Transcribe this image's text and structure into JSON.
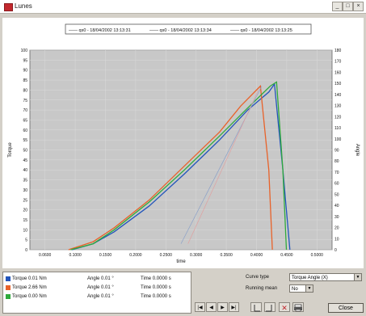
{
  "window": {
    "title": "Lunes"
  },
  "chart_data": {
    "type": "line",
    "title": "",
    "legend": [
      "—— qs0 - 18/04/2002 13:13:31",
      "—— qs0 - 18/04/2002 13:13:34",
      "—— qs0 - 18/04/2002 13:13:25"
    ],
    "legend_placement": "top",
    "xlabel": "time",
    "ylabel": "Torque",
    "y2label": "Angle",
    "xlim": [
      0.03,
      0.46
    ],
    "ylim": [
      0,
      100
    ],
    "y2lim": [
      0,
      180
    ],
    "x_ticks": [
      "0.0600",
      "0.1000",
      "0.1500",
      "0.2000",
      "0.2500",
      "0.3000",
      "0.3500",
      "0.4000",
      "0.4500",
      "0.5000"
    ],
    "y_ticks": [
      0,
      5,
      10,
      15,
      20,
      25,
      30,
      35,
      40,
      45,
      50,
      55,
      60,
      65,
      70,
      75,
      80,
      85,
      90,
      95,
      100
    ],
    "y2_ticks": [
      0,
      10,
      20,
      30,
      40,
      50,
      60,
      70,
      80,
      90,
      100,
      110,
      120,
      130,
      140,
      150,
      160,
      170,
      180
    ],
    "grid": true,
    "background": "#c8c8c8",
    "series": [
      {
        "color": "#2255bb",
        "x": [
          0.09,
          0.12,
          0.15,
          0.2,
          0.25,
          0.3,
          0.34,
          0.37,
          0.378,
          0.39,
          0.4
        ],
        "y": [
          0,
          3,
          9,
          22,
          38,
          55,
          70,
          79,
          83,
          40,
          0
        ]
      },
      {
        "color": "#e8622a",
        "x": [
          0.085,
          0.12,
          0.15,
          0.2,
          0.25,
          0.3,
          0.33,
          0.358,
          0.37,
          0.375
        ],
        "y": [
          0,
          4,
          11,
          25,
          42,
          59,
          72,
          82,
          40,
          0
        ]
      },
      {
        "color": "#2faa3c",
        "x": [
          0.088,
          0.12,
          0.15,
          0.2,
          0.25,
          0.3,
          0.34,
          0.372,
          0.381,
          0.39,
          0.395
        ],
        "y": [
          0,
          3,
          10,
          24,
          40,
          57,
          71,
          82,
          84,
          40,
          0
        ]
      },
      {
        "color": "#8aa0c8",
        "x": [
          0.245,
          0.36
        ],
        "y": [
          3,
          82
        ]
      },
      {
        "color": "#e0a0a0",
        "x": [
          0.255,
          0.355
        ],
        "y": [
          3,
          80
        ]
      }
    ]
  },
  "legend_rows": [
    {
      "color": "#2255bb",
      "name": "Torque 0.01 Nm",
      "angle": "Angle 0.01 °",
      "time": "Time 0.0000 s"
    },
    {
      "color": "#e8622a",
      "name": "Torque 2.66 Nm",
      "angle": "Angle 0.01 °",
      "time": "Time 0.0000 s"
    },
    {
      "color": "#2faa3c",
      "name": "Torque 0.00 Nm",
      "angle": "Angle 0.01 °",
      "time": "Time 0.0000 s"
    }
  ],
  "controls": {
    "curve_type_label": "Curve type",
    "curve_type_value": "Torque Angle (X)",
    "running_label": "Running mean",
    "running_value": "No",
    "close_label": "Close",
    "nav_labels": [
      "|◀",
      "◀",
      "▶",
      "▶|"
    ]
  }
}
